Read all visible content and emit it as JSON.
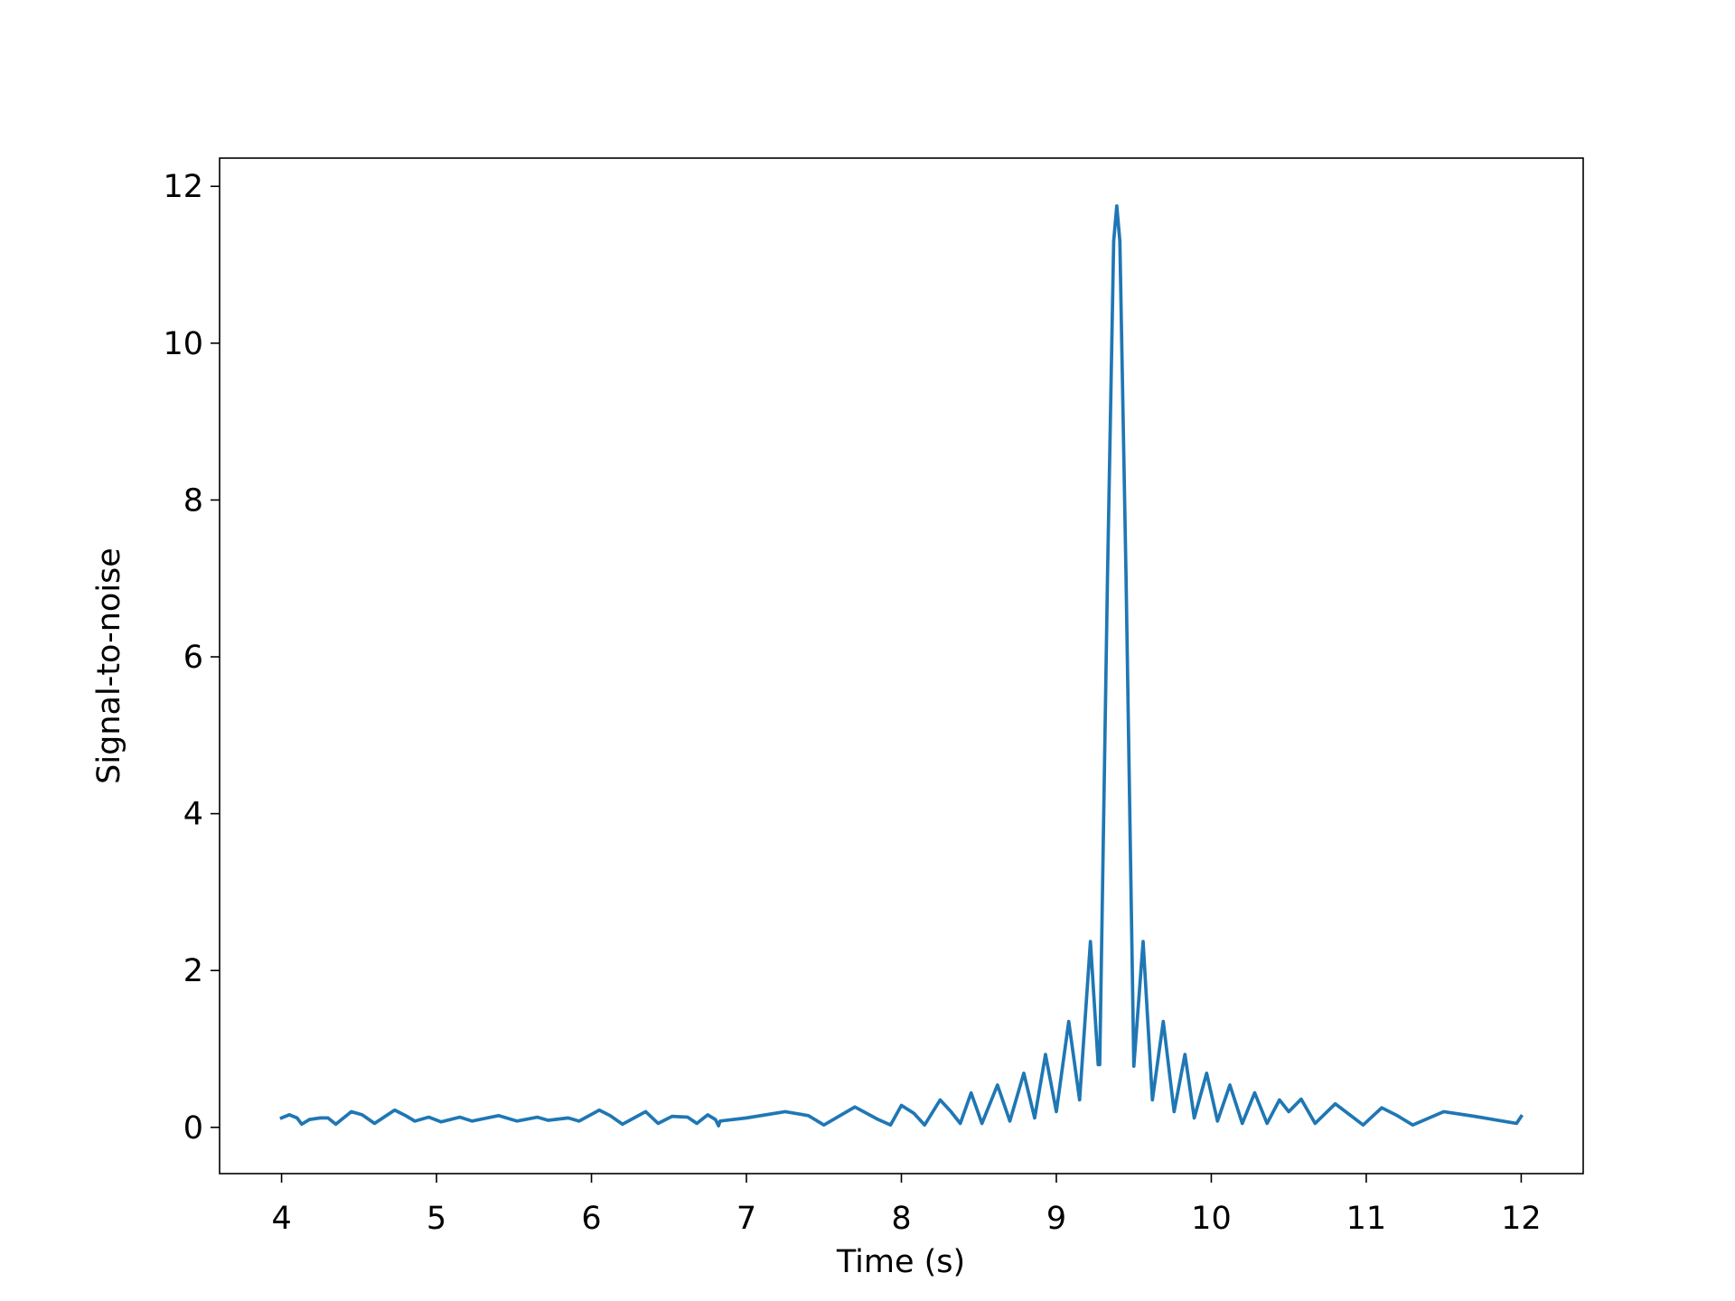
{
  "chart_data": {
    "type": "line",
    "x_label": "Time (s)",
    "y_label": "Signal-to-noise",
    "xlim": [
      3.6,
      12.4
    ],
    "ylim": [
      -0.59,
      12.36
    ],
    "xticks": [
      4,
      5,
      6,
      7,
      8,
      9,
      10,
      11,
      12
    ],
    "yticks": [
      0,
      2,
      4,
      6,
      8,
      10,
      12
    ],
    "grid": false,
    "x": [
      4.0,
      4.05,
      4.1,
      4.13,
      4.18,
      4.25,
      4.3,
      4.35,
      4.45,
      4.52,
      4.6,
      4.73,
      4.8,
      4.86,
      4.95,
      5.03,
      5.15,
      5.23,
      5.4,
      5.52,
      5.65,
      5.72,
      5.85,
      5.92,
      6.05,
      6.12,
      6.2,
      6.35,
      6.43,
      6.52,
      6.62,
      6.68,
      6.75,
      6.8,
      6.82,
      6.83,
      7.0,
      7.25,
      7.4,
      7.5,
      7.7,
      7.85,
      7.93,
      8.0,
      8.08,
      8.15,
      8.25,
      8.32,
      8.38,
      8.45,
      8.52,
      8.62,
      8.7,
      8.79,
      8.86,
      8.93,
      9.0,
      9.08,
      9.15,
      9.22,
      9.27,
      9.28,
      9.33,
      9.37,
      9.39,
      9.41,
      9.45,
      9.5,
      9.56,
      9.62,
      9.69,
      9.76,
      9.83,
      9.89,
      9.97,
      10.04,
      10.12,
      10.2,
      10.28,
      10.36,
      10.44,
      10.5,
      10.58,
      10.67,
      10.8,
      10.9,
      10.98,
      11.1,
      11.2,
      11.3,
      11.5,
      11.7,
      11.97,
      12.0
    ],
    "series": [
      {
        "color": "#1f77b4",
        "values": [
          0.12,
          0.16,
          0.12,
          0.04,
          0.1,
          0.12,
          0.12,
          0.04,
          0.2,
          0.16,
          0.05,
          0.22,
          0.15,
          0.08,
          0.13,
          0.07,
          0.13,
          0.08,
          0.15,
          0.08,
          0.13,
          0.09,
          0.12,
          0.08,
          0.22,
          0.15,
          0.04,
          0.2,
          0.05,
          0.14,
          0.13,
          0.05,
          0.16,
          0.1,
          0.02,
          0.08,
          0.12,
          0.2,
          0.15,
          0.03,
          0.26,
          0.1,
          0.03,
          0.28,
          0.18,
          0.03,
          0.35,
          0.2,
          0.05,
          0.44,
          0.05,
          0.54,
          0.08,
          0.69,
          0.12,
          0.93,
          0.2,
          1.35,
          0.35,
          2.37,
          0.8,
          0.8,
          7,
          11.3,
          11.75,
          11.3,
          7,
          0.78,
          2.37,
          0.35,
          1.35,
          0.2,
          0.93,
          0.12,
          0.69,
          0.08,
          0.54,
          0.05,
          0.44,
          0.05,
          0.35,
          0.2,
          0.36,
          0.05,
          0.3,
          0.15,
          0.03,
          0.25,
          0.15,
          0.03,
          0.2,
          0.14,
          0.05,
          0.14
        ]
      }
    ]
  }
}
